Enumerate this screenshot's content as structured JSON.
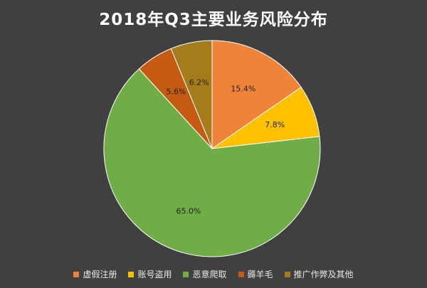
{
  "chart_data": {
    "type": "pie",
    "title": "2018年Q3主要业务风险分布",
    "slices": [
      {
        "label": "虚假注册",
        "value": 15.4,
        "value_label": "15.4%",
        "color": "#F0833A"
      },
      {
        "label": "账号盗用",
        "value": 7.8,
        "value_label": "7.8%",
        "color": "#FFC000"
      },
      {
        "label": "恶意爬取",
        "value": 65.0,
        "value_label": "65.0%",
        "color": "#70AD47"
      },
      {
        "label": "薅羊毛",
        "value": 5.6,
        "value_label": "5.6%",
        "color": "#C55A11"
      },
      {
        "label": "推广作弊及其他",
        "value": 6.2,
        "value_label": "6.2%",
        "color": "#A47C1B"
      }
    ],
    "legend_position": "bottom",
    "start_angle": "12 o'clock",
    "direction": "clockwise"
  }
}
